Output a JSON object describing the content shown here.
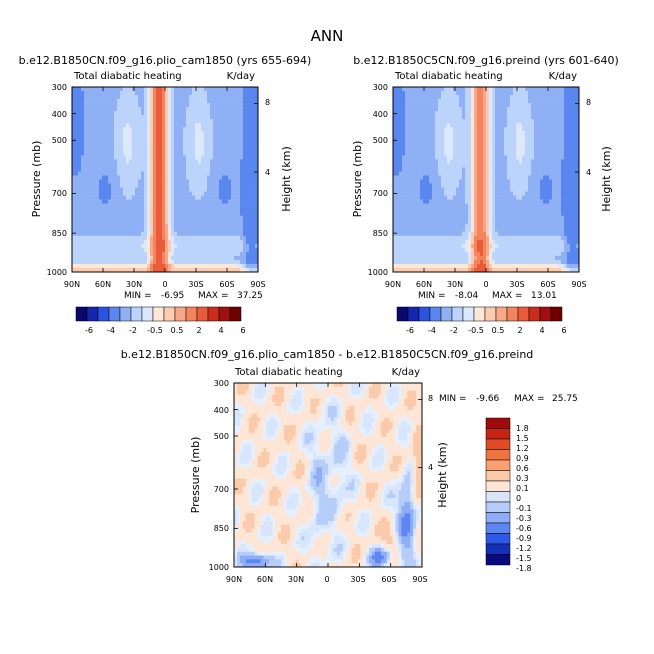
{
  "figure_title": "ANN",
  "colors": {
    "neg_level_colors": [
      "#08086e",
      "#1525b0",
      "#2a54e0",
      "#5a86f0",
      "#8fb0f5",
      "#bcd4fb",
      "#dbe8fd"
    ],
    "pos_level_colors": [
      "#fde8d8",
      "#fccbb0",
      "#f8a888",
      "#f48460",
      "#ea5b3a",
      "#cc2d1b",
      "#a30f10",
      "#6e0000"
    ],
    "diff_colors": [
      "#0a0a80",
      "#1530b8",
      "#2d5ae8",
      "#5c86f2",
      "#8eadf5",
      "#b6cdfa",
      "#d8e6fd",
      "#fde6d6",
      "#fbcaaa",
      "#f8a070",
      "#f07440",
      "#e04a25",
      "#c52414",
      "#a00a0a"
    ]
  },
  "chart_data": [
    {
      "type": "heatmap",
      "title": "b.e12.B1850CN.f09_g16.plio_cam1850 (yrs 655-694)",
      "variable_label": "Total diabatic heating",
      "units_label": "K/day",
      "ylabel": "Pressure (mb)",
      "ylabel_right": "Height (km)",
      "x_ticks": [
        "90N",
        "60N",
        "30N",
        "0",
        "30S",
        "60S",
        "90S"
      ],
      "y_ticks": [
        "300",
        "400",
        "500",
        "700",
        "850",
        "1000"
      ],
      "y_right_ticks": [
        "8",
        "4"
      ],
      "ylim": [
        1000,
        300
      ],
      "min_label": "MIN =",
      "min_value": "-6.95",
      "max_label": "MAX =",
      "max_value": "37.25",
      "colorbar_labels": [
        "-6",
        "-4",
        "-2",
        "-0.5",
        "0.5",
        "2",
        "4",
        "6"
      ]
    },
    {
      "type": "heatmap",
      "title": "b.e12.B1850C5CN.f09_g16.preind (yrs 601-640)",
      "variable_label": "Total diabatic heating",
      "units_label": "K/day",
      "ylabel": "Pressure (mb)",
      "ylabel_right": "Height (km)",
      "x_ticks": [
        "90N",
        "60N",
        "30N",
        "0",
        "30S",
        "60S",
        "90S"
      ],
      "y_ticks": [
        "300",
        "400",
        "500",
        "700",
        "850",
        "1000"
      ],
      "y_right_ticks": [
        "8",
        "4"
      ],
      "ylim": [
        1000,
        300
      ],
      "min_label": "MIN =",
      "min_value": "-8.04",
      "max_label": "MAX =",
      "max_value": "13.01",
      "colorbar_labels": [
        "-6",
        "-4",
        "-2",
        "-0.5",
        "0.5",
        "2",
        "4",
        "6"
      ]
    },
    {
      "type": "heatmap",
      "title": "b.e12.B1850CN.f09_g16.plio_cam1850 - b.e12.B1850C5CN.f09_g16.preind",
      "variable_label": "Total diabatic heating",
      "units_label": "K/day",
      "ylabel": "Pressure (mb)",
      "ylabel_right": "Height (km)",
      "x_ticks": [
        "90N",
        "60N",
        "30N",
        "0",
        "30S",
        "60S",
        "90S"
      ],
      "y_ticks": [
        "300",
        "400",
        "500",
        "700",
        "850",
        "1000"
      ],
      "y_right_ticks": [
        "8",
        "4"
      ],
      "ylim": [
        1000,
        300
      ],
      "min_label": "MIN =",
      "min_value": "-9.66",
      "max_label": "MAX =",
      "max_value": "25.75",
      "colorbar_labels": [
        "1.8",
        "1.5",
        "1.2",
        "0.9",
        "0.6",
        "0.3",
        "0.1",
        "0",
        "-0.1",
        "-0.3",
        "-0.6",
        "-0.9",
        "-1.2",
        "-1.5",
        "-1.8"
      ]
    }
  ]
}
